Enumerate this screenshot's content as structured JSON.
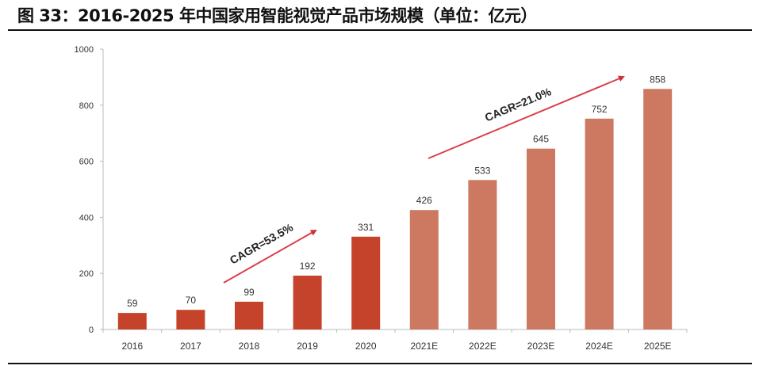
{
  "title": "图 33：2016-2025 年中国家用智能视觉产品市场规模（单位：亿元）",
  "chart_data": {
    "type": "bar",
    "title": "图 33：2016-2025 年中国家用智能视觉产品市场规模（单位：亿元）",
    "categories": [
      "2016",
      "2017",
      "2018",
      "2019",
      "2020",
      "2021E",
      "2022E",
      "2023E",
      "2024E",
      "2025E"
    ],
    "values": [
      59,
      70,
      99,
      192,
      331,
      426,
      533,
      645,
      752,
      858
    ],
    "estimated": [
      false,
      false,
      false,
      false,
      false,
      true,
      true,
      true,
      true,
      true
    ],
    "ylim": [
      0,
      1000
    ],
    "yticks": [
      0,
      200,
      400,
      600,
      800,
      1000
    ],
    "xlabel": "",
    "ylabel": "",
    "grid": false,
    "colors": {
      "actual": "#C5432A",
      "estimate": "#CD7861",
      "arrow": "#D9404A"
    },
    "annotations": [
      {
        "text": "CAGR=53.5%",
        "from": "2018",
        "to": "2020"
      },
      {
        "text": "CAGR=21.0%",
        "from": "2021E",
        "to": "2025E"
      }
    ]
  }
}
